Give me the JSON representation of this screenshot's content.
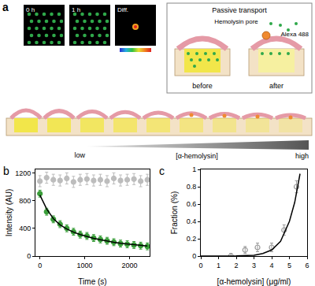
{
  "panels": {
    "a": {
      "label": "a",
      "images": [
        "0 h",
        "1 h",
        "Diff."
      ],
      "inset": {
        "title": "Passive transport",
        "labels": [
          "Hemolysin pore",
          "Alexa 488"
        ],
        "states": [
          "before",
          "after"
        ]
      },
      "gradient": {
        "low": "low",
        "title": "[α-hemolysin]",
        "high": "high"
      }
    }
  },
  "chart_data": [
    {
      "panel": "b",
      "type": "scatter",
      "x_label": "Time (s)",
      "y_label": "Intensity (AU)",
      "xlim": [
        -100,
        2450
      ],
      "xticks": [
        0,
        1000,
        2000
      ],
      "ylim": [
        0,
        1250
      ],
      "yticks": [
        0,
        400,
        800,
        1200
      ],
      "grid": false,
      "x": [
        0,
        150,
        300,
        450,
        600,
        750,
        900,
        1050,
        1200,
        1350,
        1500,
        1650,
        1800,
        1950,
        2100,
        2250,
        2400
      ],
      "series": [
        {
          "color": "#bdbdbd",
          "marker": "circle",
          "values": [
            1080,
            1130,
            1100,
            1090,
            1120,
            1070,
            1100,
            1110,
            1090,
            1100,
            1080,
            1120,
            1090,
            1100,
            1110,
            1080,
            1100
          ],
          "errors": [
            80,
            80,
            80,
            80,
            80,
            80,
            80,
            80,
            80,
            80,
            80,
            80,
            80,
            80,
            80,
            80,
            80
          ]
        },
        {
          "color": "#3a9e3a",
          "marker": "circle",
          "values": [
            900,
            640,
            530,
            460,
            400,
            350,
            310,
            290,
            260,
            240,
            220,
            200,
            180,
            170,
            160,
            150,
            140
          ],
          "errors": [
            50,
            50,
            50,
            50,
            50,
            50,
            50,
            50,
            50,
            50,
            50,
            50,
            50,
            50,
            50,
            50,
            50
          ]
        },
        {
          "type": "line",
          "color": "#000000",
          "line_style": "solid",
          "values": [
            880,
            680,
            540,
            450,
            390,
            345,
            310,
            280,
            255,
            235,
            215,
            200,
            185,
            175,
            165,
            155,
            145
          ]
        }
      ]
    },
    {
      "panel": "c",
      "type": "scatter",
      "x_label": "[α-hemolysin] (μg/ml)",
      "y_label": "Fraction (%)",
      "xlim": [
        0,
        6
      ],
      "xticks": [
        0,
        1,
        2,
        3,
        4,
        5,
        6
      ],
      "ylim": [
        0,
        1
      ],
      "yticks": [
        0,
        0.2,
        0.4,
        0.6,
        0.8,
        1
      ],
      "grid": false,
      "series": [
        {
          "color": "#999999",
          "marker": "open circle",
          "x": [
            1.7,
            2.5,
            3.2,
            4.0,
            4.7,
            5.4
          ],
          "values": [
            0.0,
            0.07,
            0.1,
            0.1,
            0.3,
            0.8
          ],
          "errors": [
            0.03,
            0.04,
            0.05,
            0.05,
            0.06,
            0.07
          ]
        },
        {
          "type": "line",
          "color": "#000000",
          "line_style": "solid",
          "x": [
            0,
            1,
            2,
            3,
            3.5,
            4,
            4.5,
            5,
            5.3,
            5.6
          ],
          "values": [
            0,
            0,
            0.002,
            0.01,
            0.03,
            0.07,
            0.17,
            0.4,
            0.62,
            0.95
          ]
        }
      ]
    }
  ]
}
